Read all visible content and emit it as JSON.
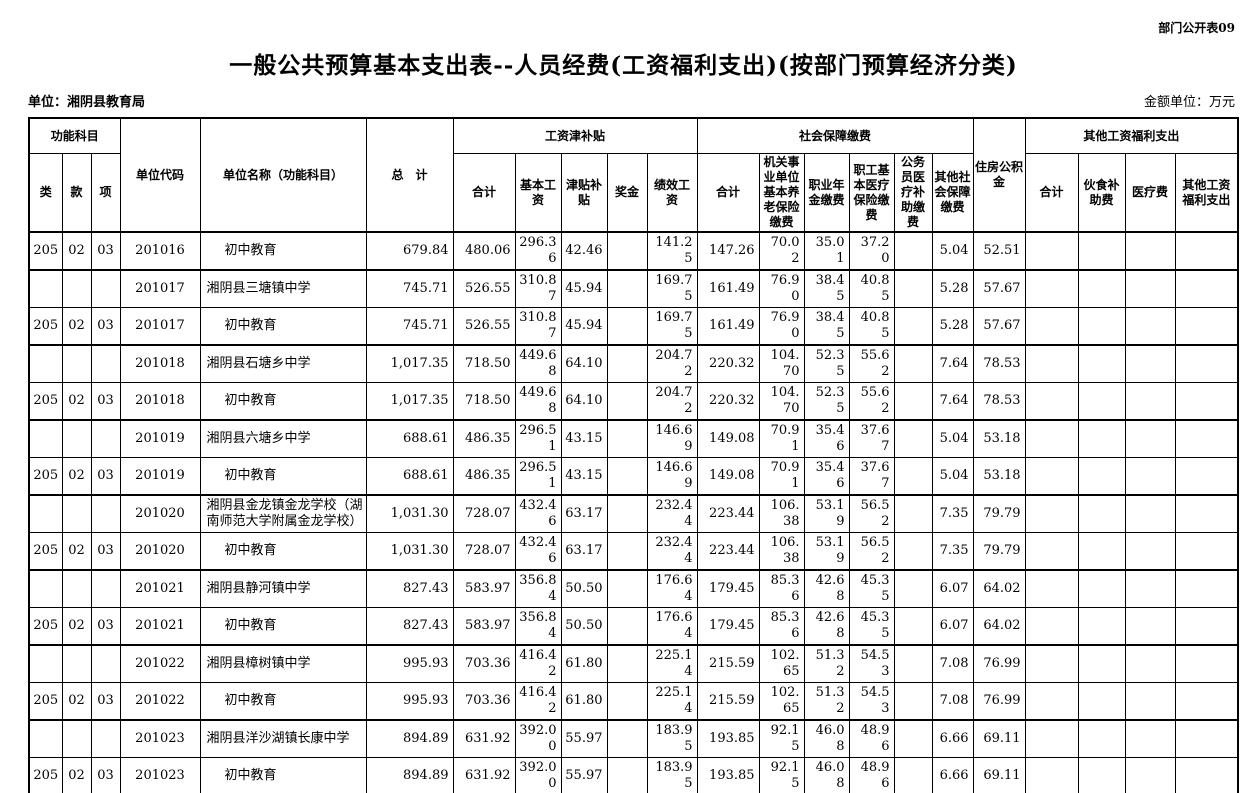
{
  "meta": {
    "doc_label": "部门公开表09",
    "title": "一般公共预算基本支出表--人员经费(工资福利支出)(按部门预算经济分类)",
    "unit_label": "单位：湘阴县教育局",
    "amount_unit_label": "金额单位：万元"
  },
  "table": {
    "header": {
      "func_group": "功能科目",
      "lei": "类",
      "kuan": "款",
      "xiang": "项",
      "unit_code": "单位代码",
      "unit_name": "单位名称（功能科目）",
      "grand_total": "总　计",
      "wage_group": "工资津补贴",
      "wage_cols": [
        "合计",
        "基本工资",
        "津贴补贴",
        "奖金",
        "绩效工资"
      ],
      "social_group": "社会保障缴费",
      "social_cols": [
        "合计",
        "机关事业单位基本养老保险缴费",
        "职业年金缴费",
        "职工基本医疗保险缴费",
        "公务员医疗补助缴费",
        "其他社会保障缴费"
      ],
      "housing": "住房公积金",
      "other_group": "其他工资福利支出",
      "other_cols": [
        "合计",
        "伙食补助费",
        "医疗费",
        "其他工资福利支出"
      ]
    },
    "rows": [
      {
        "type": "function",
        "cells": [
          "205",
          "02",
          "03",
          "201016",
          "初中教育",
          "679.84",
          "480.06",
          "296.36",
          "42.46",
          "",
          "141.25",
          "147.26",
          "70.02",
          "35.01",
          "37.20",
          "",
          "5.04",
          "52.51",
          "",
          "",
          "",
          ""
        ]
      },
      {
        "type": "school",
        "cells": [
          "",
          "",
          "",
          "201017",
          "湘阴县三塘镇中学",
          "745.71",
          "526.55",
          "310.87",
          "45.94",
          "",
          "169.75",
          "161.49",
          "76.90",
          "38.45",
          "40.85",
          "",
          "5.28",
          "57.67",
          "",
          "",
          "",
          ""
        ]
      },
      {
        "type": "function",
        "cells": [
          "205",
          "02",
          "03",
          "201017",
          "初中教育",
          "745.71",
          "526.55",
          "310.87",
          "45.94",
          "",
          "169.75",
          "161.49",
          "76.90",
          "38.45",
          "40.85",
          "",
          "5.28",
          "57.67",
          "",
          "",
          "",
          ""
        ]
      },
      {
        "type": "school",
        "cells": [
          "",
          "",
          "",
          "201018",
          "湘阴县石塘乡中学",
          "1,017.35",
          "718.50",
          "449.68",
          "64.10",
          "",
          "204.72",
          "220.32",
          "104.70",
          "52.35",
          "55.62",
          "",
          "7.64",
          "78.53",
          "",
          "",
          "",
          ""
        ]
      },
      {
        "type": "function",
        "cells": [
          "205",
          "02",
          "03",
          "201018",
          "初中教育",
          "1,017.35",
          "718.50",
          "449.68",
          "64.10",
          "",
          "204.72",
          "220.32",
          "104.70",
          "52.35",
          "55.62",
          "",
          "7.64",
          "78.53",
          "",
          "",
          "",
          ""
        ]
      },
      {
        "type": "school",
        "cells": [
          "",
          "",
          "",
          "201019",
          "湘阴县六塘乡中学",
          "688.61",
          "486.35",
          "296.51",
          "43.15",
          "",
          "146.69",
          "149.08",
          "70.91",
          "35.46",
          "37.67",
          "",
          "5.04",
          "53.18",
          "",
          "",
          "",
          ""
        ]
      },
      {
        "type": "function",
        "cells": [
          "205",
          "02",
          "03",
          "201019",
          "初中教育",
          "688.61",
          "486.35",
          "296.51",
          "43.15",
          "",
          "146.69",
          "149.08",
          "70.91",
          "35.46",
          "37.67",
          "",
          "5.04",
          "53.18",
          "",
          "",
          "",
          ""
        ]
      },
      {
        "type": "school",
        "cells": [
          "",
          "",
          "",
          "201020",
          "湘阴县金龙镇金龙学校（湖南师范大学附属金龙学校）",
          "1,031.30",
          "728.07",
          "432.46",
          "63.17",
          "",
          "232.44",
          "223.44",
          "106.38",
          "53.19",
          "56.52",
          "",
          "7.35",
          "79.79",
          "",
          "",
          "",
          ""
        ]
      },
      {
        "type": "function",
        "cells": [
          "205",
          "02",
          "03",
          "201020",
          "初中教育",
          "1,031.30",
          "728.07",
          "432.46",
          "63.17",
          "",
          "232.44",
          "223.44",
          "106.38",
          "53.19",
          "56.52",
          "",
          "7.35",
          "79.79",
          "",
          "",
          "",
          ""
        ]
      },
      {
        "type": "school",
        "cells": [
          "",
          "",
          "",
          "201021",
          "湘阴县静河镇中学",
          "827.43",
          "583.97",
          "356.84",
          "50.50",
          "",
          "176.64",
          "179.45",
          "85.36",
          "42.68",
          "45.35",
          "",
          "6.07",
          "64.02",
          "",
          "",
          "",
          ""
        ]
      },
      {
        "type": "function",
        "cells": [
          "205",
          "02",
          "03",
          "201021",
          "初中教育",
          "827.43",
          "583.97",
          "356.84",
          "50.50",
          "",
          "176.64",
          "179.45",
          "85.36",
          "42.68",
          "45.35",
          "",
          "6.07",
          "64.02",
          "",
          "",
          "",
          ""
        ]
      },
      {
        "type": "school",
        "cells": [
          "",
          "",
          "",
          "201022",
          "湘阴县樟树镇中学",
          "995.93",
          "703.36",
          "416.42",
          "61.80",
          "",
          "225.14",
          "215.59",
          "102.65",
          "51.32",
          "54.53",
          "",
          "7.08",
          "76.99",
          "",
          "",
          "",
          ""
        ]
      },
      {
        "type": "function",
        "cells": [
          "205",
          "02",
          "03",
          "201022",
          "初中教育",
          "995.93",
          "703.36",
          "416.42",
          "61.80",
          "",
          "225.14",
          "215.59",
          "102.65",
          "51.32",
          "54.53",
          "",
          "7.08",
          "76.99",
          "",
          "",
          "",
          ""
        ]
      },
      {
        "type": "school",
        "cells": [
          "",
          "",
          "",
          "201023",
          "湘阴县洋沙湖镇长康中学",
          "894.89",
          "631.92",
          "392.00",
          "55.97",
          "",
          "183.95",
          "193.85",
          "92.15",
          "46.08",
          "48.96",
          "",
          "6.66",
          "69.11",
          "",
          "",
          "",
          ""
        ]
      },
      {
        "type": "function",
        "cells": [
          "205",
          "02",
          "03",
          "201023",
          "初中教育",
          "894.89",
          "631.92",
          "392.00",
          "55.97",
          "",
          "183.95",
          "193.85",
          "92.15",
          "46.08",
          "48.96",
          "",
          "6.66",
          "69.11",
          "",
          "",
          "",
          ""
        ]
      }
    ]
  }
}
